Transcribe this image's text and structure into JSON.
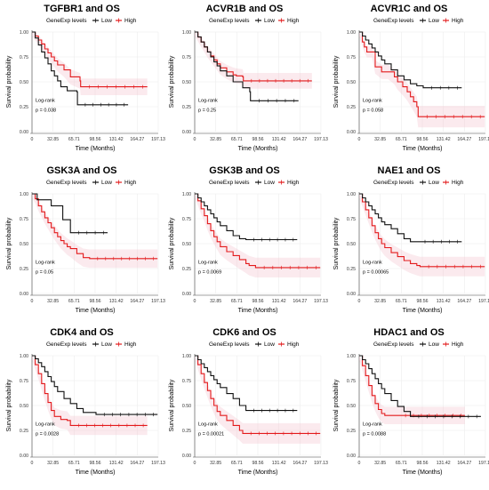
{
  "figure": {
    "legend_title": "GeneExp levels",
    "legend_labels": [
      "Low",
      "High"
    ],
    "x_axis_label": "Time (Months)",
    "y_axis_label": "Survival probability",
    "logrank_label": "Log-rank",
    "colors": {
      "Low": "#111111",
      "High": "#e31a1c",
      "ci_high": "#f4c2cf",
      "grid": "#ececec"
    }
  },
  "chart_data": [
    {
      "type": "line",
      "title": "TGFBR1 and OS",
      "xlabel": "Time (Months)",
      "ylabel": "Survival probability",
      "xticks": [
        "0",
        "32.85",
        "65.71",
        "98.56",
        "131.42",
        "164.27",
        "197.13"
      ],
      "yticks": [
        "0.00",
        "0.25",
        "0.50",
        "0.75",
        "1.00"
      ],
      "xlim": [
        0,
        197.13
      ],
      "ylim": [
        0,
        1
      ],
      "pvalue": "p = 0.038",
      "series": [
        {
          "name": "Low",
          "x": [
            0,
            5,
            10,
            15,
            20,
            25,
            30,
            35,
            40,
            45,
            55,
            70,
            71,
            150
          ],
          "y": [
            1,
            0.94,
            0.87,
            0.8,
            0.74,
            0.68,
            0.61,
            0.56,
            0.51,
            0.45,
            0.41,
            0.4,
            0.27,
            0.27
          ]
        },
        {
          "name": "High",
          "x": [
            0,
            5,
            10,
            15,
            20,
            25,
            30,
            35,
            40,
            50,
            60,
            75,
            76,
            180
          ],
          "y": [
            1,
            0.96,
            0.92,
            0.88,
            0.83,
            0.79,
            0.75,
            0.71,
            0.67,
            0.62,
            0.55,
            0.51,
            0.45,
            0.45
          ]
        }
      ]
    },
    {
      "type": "line",
      "title": "ACVR1B and OS",
      "xlabel": "Time (Months)",
      "ylabel": "Survival probability",
      "xticks": [
        "0",
        "32.85",
        "65.71",
        "98.56",
        "131.42",
        "164.27",
        "197.13"
      ],
      "yticks": [
        "0.00",
        "0.25",
        "0.50",
        "0.75",
        "1.00"
      ],
      "xlim": [
        0,
        197.13
      ],
      "ylim": [
        0,
        1
      ],
      "pvalue": "p = 0.25",
      "series": [
        {
          "name": "Low",
          "x": [
            0,
            5,
            10,
            15,
            20,
            25,
            30,
            35,
            40,
            50,
            60,
            75,
            86,
            87,
            162
          ],
          "y": [
            1,
            0.95,
            0.9,
            0.85,
            0.8,
            0.75,
            0.7,
            0.66,
            0.61,
            0.56,
            0.5,
            0.44,
            0.4,
            0.31,
            0.31
          ]
        },
        {
          "name": "High",
          "x": [
            0,
            5,
            10,
            15,
            20,
            25,
            30,
            35,
            40,
            50,
            60,
            65,
            75,
            76,
            183
          ],
          "y": [
            1,
            0.95,
            0.9,
            0.85,
            0.8,
            0.76,
            0.72,
            0.68,
            0.64,
            0.6,
            0.57,
            0.56,
            0.55,
            0.51,
            0.51
          ]
        }
      ]
    },
    {
      "type": "line",
      "title": "ACVR1C and OS",
      "xlabel": "Time (Months)",
      "ylabel": "Survival probability",
      "xticks": [
        "0",
        "32.85",
        "65.71",
        "98.56",
        "131.42",
        "164.27",
        "197.13"
      ],
      "yticks": [
        "0.00",
        "0.25",
        "0.50",
        "0.75",
        "1.00"
      ],
      "xlim": [
        0,
        197.13
      ],
      "ylim": [
        0,
        1
      ],
      "pvalue": "p = 0.058",
      "series": [
        {
          "name": "Low",
          "x": [
            0,
            5,
            10,
            15,
            20,
            25,
            30,
            35,
            40,
            50,
            60,
            70,
            80,
            90,
            100,
            160
          ],
          "y": [
            1,
            0.96,
            0.92,
            0.88,
            0.84,
            0.8,
            0.76,
            0.72,
            0.68,
            0.62,
            0.56,
            0.52,
            0.48,
            0.46,
            0.44,
            0.44
          ]
        },
        {
          "name": "High",
          "x": [
            0,
            5,
            8,
            12,
            20,
            25,
            35,
            45,
            55,
            60,
            68,
            75,
            80,
            85,
            90,
            92,
            196
          ],
          "y": [
            1,
            0.9,
            0.85,
            0.8,
            0.8,
            0.65,
            0.6,
            0.6,
            0.55,
            0.5,
            0.45,
            0.4,
            0.35,
            0.3,
            0.25,
            0.15,
            0.15
          ]
        }
      ]
    },
    {
      "type": "line",
      "title": "GSK3A and OS",
      "xlabel": "Time (Months)",
      "ylabel": "Survival probability",
      "xticks": [
        "0",
        "32.85",
        "65.71",
        "98.56",
        "131.42",
        "164.27",
        "197.13"
      ],
      "yticks": [
        "0.00",
        "0.25",
        "0.50",
        "0.75",
        "1.00"
      ],
      "xlim": [
        0,
        197.13
      ],
      "ylim": [
        0,
        1
      ],
      "pvalue": "p = 0.05",
      "series": [
        {
          "name": "Low",
          "x": [
            0,
            8,
            30,
            45,
            48,
            60,
            118
          ],
          "y": [
            1,
            0.94,
            0.88,
            0.88,
            0.74,
            0.61,
            0.61
          ]
        },
        {
          "name": "High",
          "x": [
            0,
            5,
            10,
            15,
            20,
            25,
            30,
            35,
            40,
            45,
            50,
            55,
            60,
            70,
            80,
            90,
            196
          ],
          "y": [
            1,
            0.95,
            0.88,
            0.82,
            0.76,
            0.71,
            0.66,
            0.61,
            0.57,
            0.53,
            0.5,
            0.47,
            0.45,
            0.4,
            0.36,
            0.35,
            0.35
          ]
        }
      ]
    },
    {
      "type": "line",
      "title": "GSK3B and OS",
      "xlabel": "Time (Months)",
      "ylabel": "Survival probability",
      "xticks": [
        "0",
        "32.85",
        "65.71",
        "98.56",
        "131.42",
        "164.27",
        "197.13"
      ],
      "yticks": [
        "0.00",
        "0.25",
        "0.50",
        "0.75",
        "1.00"
      ],
      "xlim": [
        0,
        197.13
      ],
      "ylim": [
        0,
        1
      ],
      "pvalue": "p = 0.0069",
      "series": [
        {
          "name": "Low",
          "x": [
            0,
            5,
            10,
            15,
            20,
            25,
            30,
            35,
            40,
            50,
            60,
            70,
            80,
            160
          ],
          "y": [
            1,
            0.96,
            0.92,
            0.88,
            0.84,
            0.8,
            0.76,
            0.72,
            0.68,
            0.63,
            0.58,
            0.55,
            0.54,
            0.54
          ]
        },
        {
          "name": "High",
          "x": [
            0,
            5,
            10,
            15,
            20,
            25,
            30,
            35,
            40,
            50,
            60,
            70,
            80,
            85,
            95,
            196
          ],
          "y": [
            1,
            0.93,
            0.85,
            0.78,
            0.7,
            0.63,
            0.57,
            0.52,
            0.47,
            0.42,
            0.38,
            0.34,
            0.3,
            0.28,
            0.26,
            0.26
          ]
        }
      ]
    },
    {
      "type": "line",
      "title": "NAE1 and OS",
      "xlabel": "Time (Months)",
      "ylabel": "Survival probability",
      "xticks": [
        "0",
        "32.85",
        "65.71",
        "98.56",
        "131.42",
        "164.27",
        "197.13"
      ],
      "yticks": [
        "0.00",
        "0.25",
        "0.50",
        "0.75",
        "1.00"
      ],
      "xlim": [
        0,
        197.13
      ],
      "ylim": [
        0,
        1
      ],
      "pvalue": "p = 0.00065",
      "series": [
        {
          "name": "Low",
          "x": [
            0,
            5,
            10,
            15,
            20,
            25,
            30,
            35,
            40,
            50,
            60,
            70,
            80,
            90,
            160
          ],
          "y": [
            1,
            0.96,
            0.92,
            0.88,
            0.84,
            0.8,
            0.76,
            0.72,
            0.69,
            0.65,
            0.6,
            0.55,
            0.52,
            0.52,
            0.52
          ]
        },
        {
          "name": "High",
          "x": [
            0,
            5,
            10,
            15,
            20,
            25,
            30,
            35,
            40,
            50,
            60,
            70,
            80,
            90,
            95,
            196
          ],
          "y": [
            1,
            0.92,
            0.84,
            0.76,
            0.68,
            0.61,
            0.55,
            0.5,
            0.46,
            0.41,
            0.37,
            0.33,
            0.3,
            0.28,
            0.27,
            0.27
          ]
        }
      ]
    },
    {
      "type": "line",
      "title": "CDK4 and OS",
      "xlabel": "Time (Months)",
      "ylabel": "Survival probability",
      "xticks": [
        "0",
        "32.85",
        "65.71",
        "98.56",
        "131.42",
        "164.27",
        "197.13"
      ],
      "yticks": [
        "0.00",
        "0.25",
        "0.50",
        "0.75",
        "1.00"
      ],
      "xlim": [
        0,
        197.13
      ],
      "ylim": [
        0,
        1
      ],
      "pvalue": "p = 0.0028",
      "series": [
        {
          "name": "Low",
          "x": [
            0,
            5,
            10,
            15,
            20,
            25,
            30,
            35,
            40,
            50,
            60,
            70,
            80,
            100,
            196
          ],
          "y": [
            1,
            0.97,
            0.93,
            0.89,
            0.84,
            0.79,
            0.74,
            0.69,
            0.64,
            0.57,
            0.52,
            0.47,
            0.43,
            0.41,
            0.41
          ]
        },
        {
          "name": "High",
          "x": [
            0,
            5,
            10,
            15,
            20,
            25,
            30,
            35,
            45,
            55,
            60,
            180
          ],
          "y": [
            1,
            0.91,
            0.82,
            0.72,
            0.62,
            0.53,
            0.45,
            0.39,
            0.36,
            0.35,
            0.3,
            0.3
          ]
        }
      ]
    },
    {
      "type": "line",
      "title": "CDK6 and OS",
      "xlabel": "Time (Months)",
      "ylabel": "Survival probability",
      "xticks": [
        "0",
        "32.85",
        "65.71",
        "98.56",
        "131.42",
        "164.27",
        "197.13"
      ],
      "yticks": [
        "0.00",
        "0.25",
        "0.50",
        "0.75",
        "1.00"
      ],
      "xlim": [
        0,
        197.13
      ],
      "ylim": [
        0,
        1
      ],
      "pvalue": "p = 0.00021",
      "series": [
        {
          "name": "Low",
          "x": [
            0,
            5,
            10,
            15,
            20,
            25,
            30,
            35,
            40,
            50,
            60,
            70,
            80,
            160
          ],
          "y": [
            1,
            0.96,
            0.92,
            0.88,
            0.84,
            0.8,
            0.76,
            0.72,
            0.68,
            0.62,
            0.57,
            0.5,
            0.45,
            0.45
          ]
        },
        {
          "name": "High",
          "x": [
            0,
            5,
            10,
            15,
            20,
            25,
            30,
            35,
            40,
            50,
            60,
            70,
            75,
            196
          ],
          "y": [
            1,
            0.91,
            0.82,
            0.73,
            0.65,
            0.57,
            0.5,
            0.44,
            0.4,
            0.35,
            0.3,
            0.25,
            0.22,
            0.22
          ]
        }
      ]
    },
    {
      "type": "line",
      "title": "HDAC1 and OS",
      "xlabel": "Time (Months)",
      "ylabel": "Survival probability",
      "xticks": [
        "0",
        "32.85",
        "65.71",
        "98.56",
        "131.42",
        "164.27",
        "197.13"
      ],
      "yticks": [
        "0.00",
        "0.25",
        "0.50",
        "0.75",
        "1.00"
      ],
      "xlim": [
        0,
        197.13
      ],
      "ylim": [
        0,
        1
      ],
      "pvalue": "p = 0.0088",
      "series": [
        {
          "name": "Low",
          "x": [
            0,
            5,
            10,
            15,
            20,
            25,
            30,
            35,
            40,
            50,
            60,
            70,
            80,
            190
          ],
          "y": [
            1,
            0.96,
            0.92,
            0.87,
            0.82,
            0.77,
            0.72,
            0.67,
            0.62,
            0.55,
            0.49,
            0.44,
            0.39,
            0.39
          ]
        },
        {
          "name": "High",
          "x": [
            0,
            5,
            10,
            15,
            20,
            25,
            30,
            35,
            40,
            50,
            60,
            165
          ],
          "y": [
            1,
            0.9,
            0.8,
            0.7,
            0.6,
            0.52,
            0.46,
            0.42,
            0.4,
            0.4,
            0.4,
            0.4
          ]
        }
      ]
    }
  ]
}
